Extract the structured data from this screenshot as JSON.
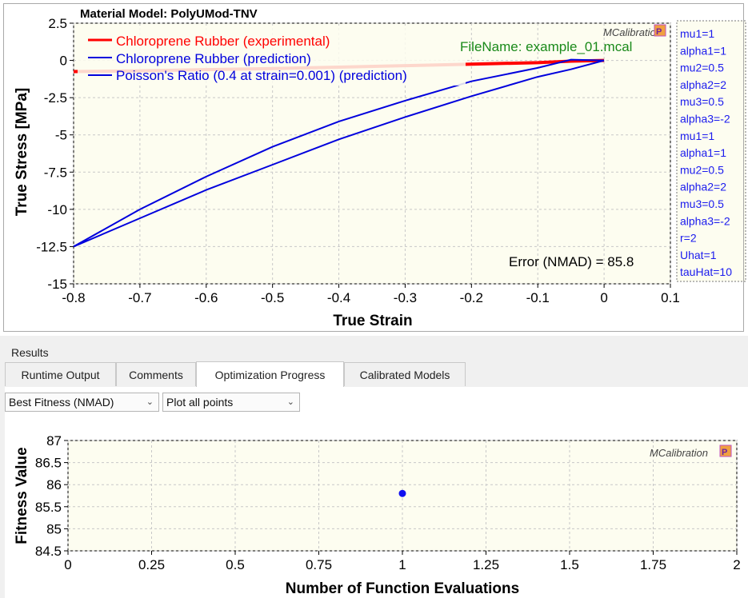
{
  "stress_chart": {
    "chart_data": {
      "type": "line",
      "title": "Material Model: PolyUMod-TNV",
      "xlabel": "True Strain",
      "ylabel": "True Stress [MPa]",
      "xlim": [
        -0.8,
        0.1
      ],
      "ylim": [
        -15,
        2.5
      ],
      "xticks": [
        "-0.8",
        "-0.7",
        "-0.6",
        "-0.5",
        "-0.4",
        "-0.3",
        "-0.2",
        "-0.1",
        "0",
        "0.1"
      ],
      "yticks": [
        "2.5",
        "0",
        "-2.5",
        "-5",
        "-7.5",
        "-10",
        "-12.5",
        "-15"
      ],
      "series": [
        {
          "name": "Chloroprene Rubber (experimental)",
          "color": "#ff0000",
          "x": [
            -0.8,
            -0.7,
            -0.6,
            -0.5,
            -0.4,
            -0.3,
            -0.2,
            -0.1,
            -0.05,
            0
          ],
          "y": [
            -0.75,
            -0.7,
            -0.62,
            -0.55,
            -0.45,
            -0.35,
            -0.25,
            -0.15,
            -0.05,
            0
          ]
        },
        {
          "name": "Chloroprene Rubber (prediction)",
          "color": "#0000dd",
          "x": [
            0,
            -0.05,
            -0.1,
            -0.2,
            -0.3,
            -0.4,
            -0.5,
            -0.6,
            -0.7,
            -0.8,
            -0.7,
            -0.6,
            -0.5,
            -0.4,
            -0.3,
            -0.2,
            -0.1,
            -0.05,
            0
          ],
          "y": [
            0,
            -0.6,
            -1.1,
            -2.4,
            -3.8,
            -5.3,
            -7.0,
            -8.7,
            -10.6,
            -12.5,
            -10.0,
            -7.8,
            -5.8,
            -4.1,
            -2.7,
            -1.4,
            -0.5,
            0.05,
            0
          ]
        },
        {
          "name": "Poisson's Ratio (0.4 at strain=0.001) (prediction)",
          "color": "#0000dd",
          "x": [],
          "y": []
        }
      ],
      "legend": "top-left",
      "annotations": {
        "filename": "FileName: example_01.mcal",
        "error": "Error (NMAD)  = 85.8",
        "brand": "MCalibration"
      },
      "params": [
        "mu1=1",
        "alpha1=1",
        "mu2=0.5",
        "alpha2=2",
        "mu3=0.5",
        "alpha3=-2",
        "mu1=1",
        "alpha1=1",
        "mu2=0.5",
        "alpha2=2",
        "mu3=0.5",
        "alpha3=-2",
        "r=2",
        "Uhat=1",
        "tauHat=10"
      ]
    }
  },
  "results": {
    "label": "Results",
    "tabs": [
      {
        "label": "Runtime Output",
        "active": false
      },
      {
        "label": "Comments",
        "active": false
      },
      {
        "label": "Optimization Progress",
        "active": true
      },
      {
        "label": "Calibrated Models",
        "active": false
      }
    ],
    "metric_select": "Best Fitness (NMAD)",
    "points_select": "Plot all points"
  },
  "fitness_chart": {
    "chart_data": {
      "type": "scatter",
      "xlabel": "Number of Function Evaluations",
      "ylabel": "Fitness Value",
      "xlim": [
        0,
        2
      ],
      "ylim": [
        84.5,
        87
      ],
      "xticks": [
        "0",
        "0.25",
        "0.5",
        "0.75",
        "1",
        "1.25",
        "1.5",
        "1.75",
        "2"
      ],
      "yticks": [
        "87",
        "86.5",
        "86",
        "85.5",
        "85",
        "84.5"
      ],
      "series": [
        {
          "color": "#1010f0",
          "x": [
            1
          ],
          "y": [
            85.8
          ]
        }
      ],
      "brand": "MCalibration"
    }
  }
}
